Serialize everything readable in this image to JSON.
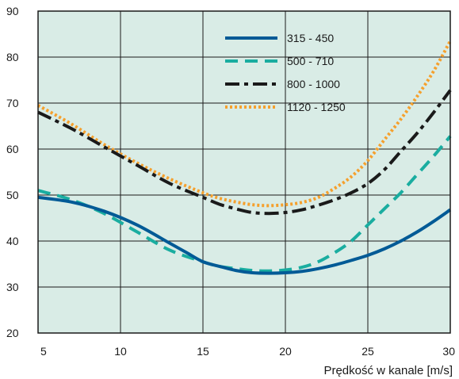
{
  "chart_data": {
    "type": "line",
    "title": "",
    "xlabel": "Prędkość w kanale [m/s]",
    "ylabel": "",
    "xlim": [
      5,
      30
    ],
    "ylim": [
      20,
      90
    ],
    "xticks": [
      5,
      10,
      15,
      20,
      25,
      30
    ],
    "yticks": [
      20,
      30,
      40,
      50,
      60,
      70,
      80,
      90
    ],
    "grid": true,
    "legend_position": "top-center",
    "colors": {
      "plot_background": "#d9ece6",
      "grid": "#1a1a1a",
      "frame": "#1a1a1a"
    },
    "series": [
      {
        "name": "315 - 450",
        "color": "#005a96",
        "dash": "solid",
        "x": [
          5,
          7,
          9,
          11,
          13,
          14,
          15,
          16,
          17,
          18,
          19,
          20,
          21,
          22,
          23,
          24,
          25,
          26,
          27,
          28,
          29,
          30
        ],
        "y": [
          49.5,
          48.5,
          46.5,
          43.5,
          39.5,
          37.5,
          35.5,
          34.5,
          33.6,
          33.1,
          33.0,
          33.1,
          33.4,
          34.0,
          34.8,
          35.8,
          36.9,
          38.3,
          40.0,
          42.0,
          44.3,
          46.8
        ]
      },
      {
        "name": "500 - 710",
        "color": "#1aada0",
        "dash": "dash",
        "x": [
          5,
          7,
          9,
          11,
          13,
          15,
          16,
          17,
          18,
          19,
          20,
          21,
          22,
          23,
          24,
          25,
          26,
          27,
          28,
          29,
          30
        ],
        "y": [
          51.0,
          49.0,
          46.0,
          42.0,
          38.0,
          35.5,
          34.5,
          34.0,
          33.6,
          33.5,
          33.7,
          34.3,
          35.5,
          37.5,
          40.0,
          43.5,
          47.0,
          50.5,
          54.5,
          58.5,
          62.8
        ]
      },
      {
        "name": "800 - 1000",
        "color": "#1a1a1a",
        "dash": "dashdot",
        "x": [
          5,
          7,
          9,
          11,
          13,
          15,
          16,
          17,
          18,
          19,
          20,
          21,
          22,
          23,
          24,
          25,
          26,
          27,
          28,
          29,
          30
        ],
        "y": [
          68.0,
          64.5,
          60.5,
          56.5,
          52.5,
          49.5,
          48.0,
          47.0,
          46.2,
          46.0,
          46.2,
          46.8,
          47.8,
          49.0,
          50.5,
          52.5,
          55.5,
          59.5,
          63.5,
          68.0,
          72.8
        ]
      },
      {
        "name": "1120 - 1250",
        "color": "#f5a02d",
        "dash": "dot",
        "x": [
          5,
          7,
          9,
          11,
          13,
          15,
          16,
          17,
          18,
          19,
          20,
          21,
          22,
          23,
          24,
          25,
          26,
          27,
          28,
          29,
          30
        ],
        "y": [
          69.5,
          65.5,
          61.0,
          57.0,
          53.5,
          50.5,
          49.3,
          48.5,
          47.9,
          47.7,
          47.9,
          48.4,
          49.5,
          51.5,
          54.0,
          57.5,
          62.0,
          66.5,
          71.5,
          77.0,
          83.5
        ]
      }
    ]
  }
}
